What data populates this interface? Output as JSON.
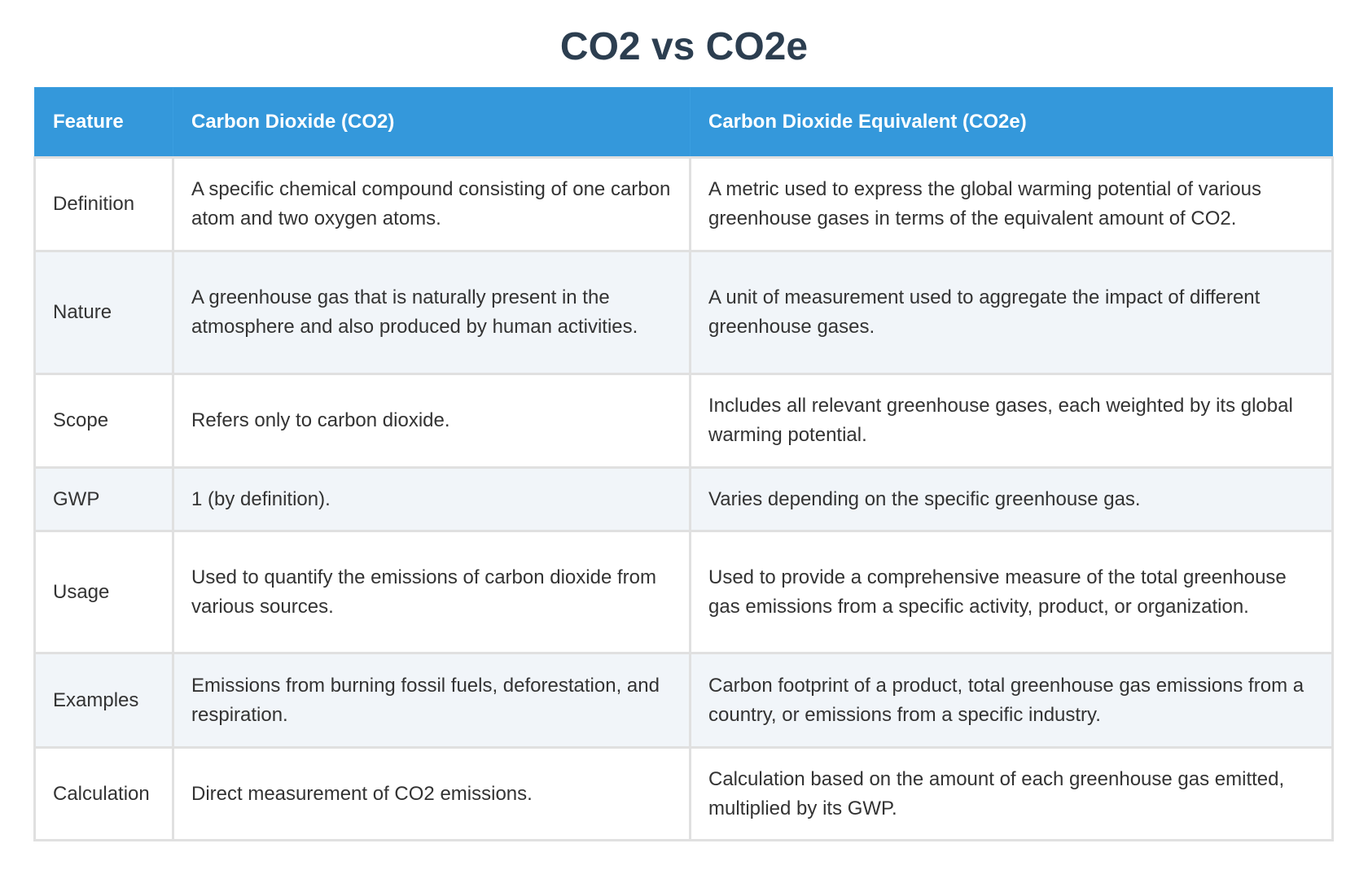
{
  "title": "CO2 vs CO2e",
  "columns": [
    "Feature",
    "Carbon Dioxide (CO2)",
    "Carbon Dioxide Equivalent (CO2e)"
  ],
  "rows": [
    {
      "feature": "Definition",
      "co2": "A specific chemical compound consisting of one carbon atom and two oxygen atoms.",
      "co2e": "A metric used to express the global warming potential of various greenhouse gases in terms of the equivalent amount of CO2."
    },
    {
      "feature": "Nature",
      "co2": "A greenhouse gas that is naturally present in the atmosphere and also produced by human activities.",
      "co2e": "A unit of measurement used to aggregate the impact of different greenhouse gases."
    },
    {
      "feature": "Scope",
      "co2": "Refers only to carbon dioxide.",
      "co2e": "Includes all relevant greenhouse gases, each weighted by its global warming potential."
    },
    {
      "feature": "GWP",
      "co2": "1 (by definition).",
      "co2e": "Varies depending on the specific greenhouse gas."
    },
    {
      "feature": "Usage",
      "co2": "Used to quantify the emissions of carbon dioxide from various sources.",
      "co2e": "Used to provide a comprehensive measure of the total greenhouse gas emissions from a specific activity, product, or organization."
    },
    {
      "feature": "Examples",
      "co2": "Emissions from burning fossil fuels, deforestation, and respiration.",
      "co2e": "Carbon footprint of a product, total greenhouse gas emissions from a country, or emissions from a specific industry."
    },
    {
      "feature": "Calculation",
      "co2": "Direct measurement of CO2 emissions.",
      "co2e": "Calculation based on the amount of each greenhouse gas emitted, multiplied by its GWP."
    }
  ],
  "colors": {
    "header_bg": "#3498db",
    "title": "#2c3e50",
    "alt_row": "#f1f5f9"
  }
}
